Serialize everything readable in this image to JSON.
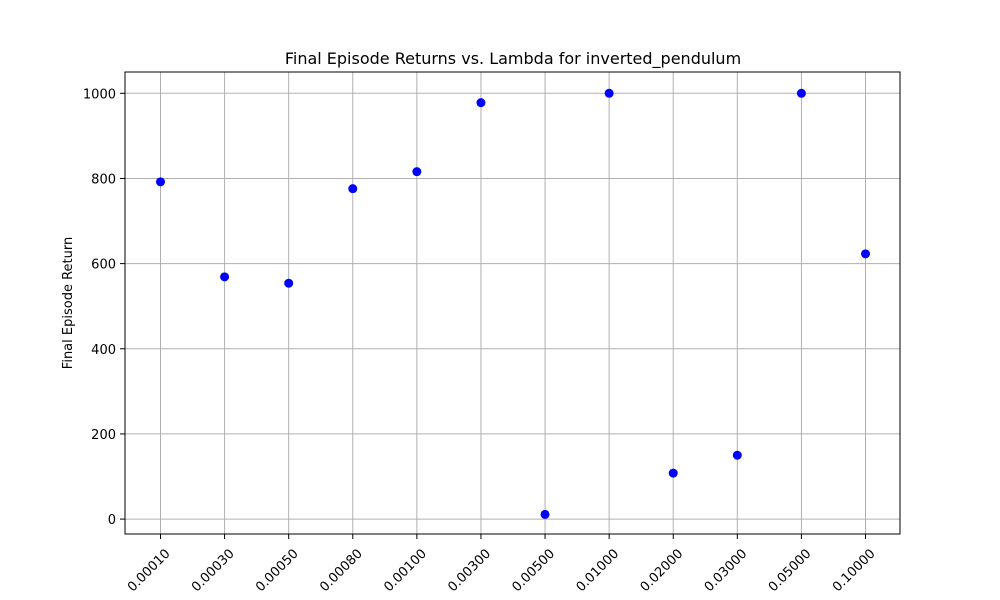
{
  "chart_data": {
    "type": "scatter",
    "title": "Final Episode Returns vs. Lambda for inverted_pendulum",
    "xlabel": "",
    "ylabel": "Final Episode Return",
    "categories": [
      "0.00010",
      "0.00030",
      "0.00050",
      "0.00080",
      "0.00100",
      "0.00300",
      "0.00500",
      "0.01000",
      "0.02000",
      "0.03000",
      "0.05000",
      "0.10000"
    ],
    "values": [
      792,
      569,
      554,
      776,
      816,
      978,
      11,
      1000,
      108,
      150,
      1000,
      623
    ],
    "yticks": [
      0,
      200,
      400,
      600,
      800,
      1000
    ],
    "ylim": [
      -35,
      1050
    ],
    "grid": true,
    "marker_color": "#0000ff",
    "x_tick_rotation": 45
  }
}
